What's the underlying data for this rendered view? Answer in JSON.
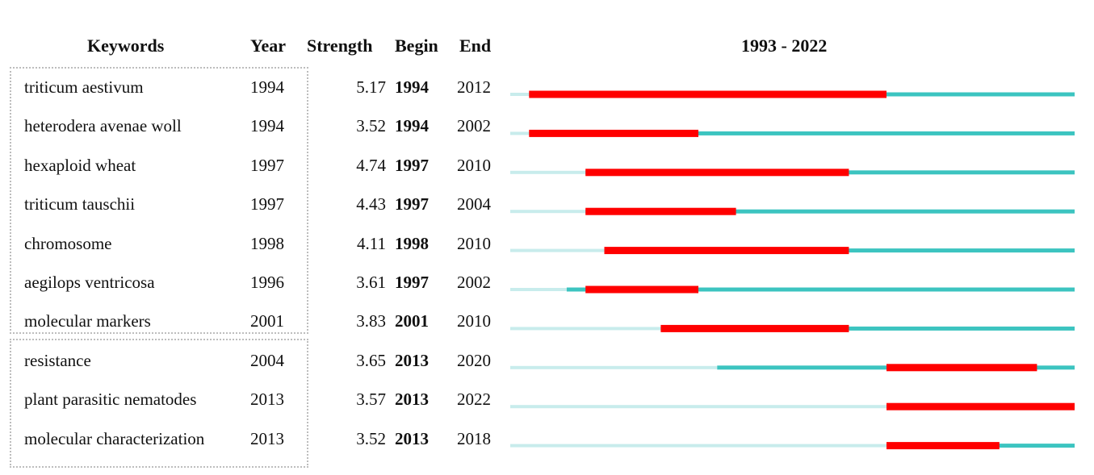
{
  "chart_data": {
    "type": "table",
    "title": "1993 - 2022",
    "range": [
      1993,
      2022
    ],
    "columns": {
      "keywords": "Keywords",
      "year": "Year",
      "strength": "Strength",
      "begin": "Begin",
      "end": "End"
    },
    "rows": [
      {
        "keyword": "triticum aestivum",
        "year": "1994",
        "strength": "5.17",
        "begin": "1994",
        "end": "2012"
      },
      {
        "keyword": "heterodera avenae woll",
        "year": "1994",
        "strength": "3.52",
        "begin": "1994",
        "end": "2002"
      },
      {
        "keyword": "hexaploid wheat",
        "year": "1997",
        "strength": "4.74",
        "begin": "1997",
        "end": "2010"
      },
      {
        "keyword": "triticum tauschii",
        "year": "1997",
        "strength": "4.43",
        "begin": "1997",
        "end": "2004"
      },
      {
        "keyword": "chromosome",
        "year": "1998",
        "strength": "4.11",
        "begin": "1998",
        "end": "2010"
      },
      {
        "keyword": "aegilops ventricosa",
        "year": "1996",
        "strength": "3.61",
        "begin": "1997",
        "end": "2002"
      },
      {
        "keyword": "molecular markers",
        "year": "2001",
        "strength": "3.83",
        "begin": "2001",
        "end": "2010"
      },
      {
        "keyword": "resistance",
        "year": "2004",
        "strength": "3.65",
        "begin": "2013",
        "end": "2020"
      },
      {
        "keyword": "plant parasitic nematodes",
        "year": "2013",
        "strength": "3.57",
        "begin": "2013",
        "end": "2022"
      },
      {
        "keyword": "molecular characterization",
        "year": "2013",
        "strength": "3.52",
        "begin": "2013",
        "end": "2018"
      }
    ],
    "colors": {
      "burst": "#ff0000",
      "active": "#3cc4c0",
      "inactive": "#c8ecec",
      "box_border": "#bdbdbd"
    }
  }
}
